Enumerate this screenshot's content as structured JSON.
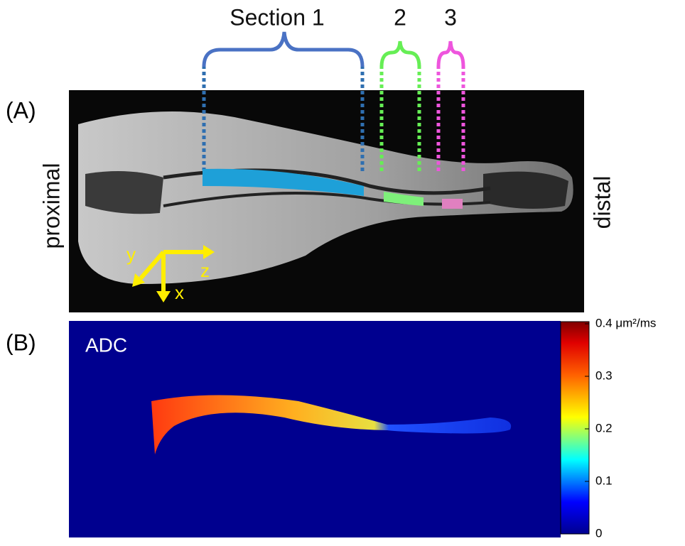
{
  "panel_a": {
    "label": "(A)",
    "sections": [
      "Section 1",
      "2",
      "3"
    ],
    "proximal": "proximal",
    "distal": "distal",
    "axes": [
      "y",
      "z",
      "x"
    ]
  },
  "panel_b": {
    "label": "(B)",
    "map_label": "ADC",
    "colorbar": {
      "lim": [
        0,
        0.4
      ],
      "ticks": [
        {
          "value": 0.4,
          "label": "0.4 μm²/ms"
        },
        0.3,
        0.2,
        0.1,
        0
      ]
    }
  }
}
